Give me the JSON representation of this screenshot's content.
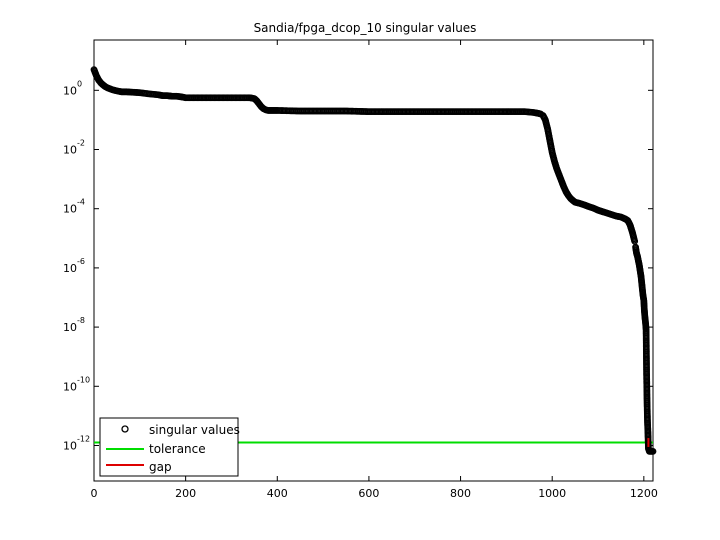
{
  "chart_data": {
    "type": "scatter",
    "title": "Sandia/fpga_dcop_10 singular values",
    "xlabel": "",
    "ylabel": "",
    "xlim": [
      0,
      1220
    ],
    "ylim_log10": [
      -13.2,
      1.7
    ],
    "yscale": "log",
    "x_ticks": [
      0,
      200,
      400,
      600,
      800,
      1000,
      1200
    ],
    "y_tick_base": "10",
    "y_ticks": [
      {
        "value_log10": 0,
        "exp": "0"
      },
      {
        "value_log10": -2,
        "exp": "-2"
      },
      {
        "value_log10": -4,
        "exp": "-4"
      },
      {
        "value_log10": -6,
        "exp": "-6"
      },
      {
        "value_log10": -8,
        "exp": "-8"
      },
      {
        "value_log10": -10,
        "exp": "-10"
      },
      {
        "value_log10": -12,
        "exp": "-12"
      }
    ],
    "grid": false,
    "legend_position": "bottom-left",
    "series": [
      {
        "name": "singular values",
        "marker": "circle",
        "color": "#000000",
        "segments": [
          {
            "x": [
              0,
              5,
              10,
              15,
              20,
              25,
              30,
              40,
              50,
              60,
              70,
              80,
              90,
              100,
              120,
              140,
              150,
              160,
              170,
              180,
              190,
              200,
              220,
              240,
              260,
              280,
              300,
              320,
              340,
              350,
              355,
              360,
              365,
              370,
              375,
              380,
              385,
              390,
              400,
              450,
              500,
              550,
              600,
              650,
              700,
              750,
              800,
              850,
              900,
              940,
              960,
              970,
              975
            ],
            "log10": [
              0.7,
              0.5,
              0.35,
              0.25,
              0.18,
              0.12,
              0.08,
              0.02,
              -0.02,
              -0.05,
              -0.05,
              -0.06,
              -0.07,
              -0.08,
              -0.12,
              -0.15,
              -0.18,
              -0.18,
              -0.2,
              -0.2,
              -0.22,
              -0.25,
              -0.25,
              -0.25,
              -0.25,
              -0.25,
              -0.25,
              -0.25,
              -0.25,
              -0.28,
              -0.35,
              -0.45,
              -0.55,
              -0.62,
              -0.66,
              -0.68,
              -0.68,
              -0.68,
              -0.68,
              -0.7,
              -0.7,
              -0.7,
              -0.72,
              -0.72,
              -0.72,
              -0.72,
              -0.72,
              -0.72,
              -0.72,
              -0.72,
              -0.75,
              -0.78,
              -0.8
            ]
          },
          {
            "x": [
              980,
              985,
              990,
              995,
              1000,
              1005,
              1010,
              1015,
              1020,
              1025,
              1030,
              1035,
              1040,
              1045,
              1050,
              1060,
              1070,
              1080,
              1090,
              1100,
              1110,
              1120,
              1130,
              1140,
              1150,
              1160,
              1165,
              1170,
              1175,
              1180
            ],
            "log10": [
              -0.85,
              -1.0,
              -1.3,
              -1.7,
              -2.1,
              -2.4,
              -2.65,
              -2.85,
              -3.05,
              -3.25,
              -3.42,
              -3.55,
              -3.65,
              -3.72,
              -3.78,
              -3.82,
              -3.87,
              -3.93,
              -3.98,
              -4.05,
              -4.1,
              -4.15,
              -4.2,
              -4.25,
              -4.28,
              -4.35,
              -4.4,
              -4.55,
              -4.8,
              -5.1
            ]
          },
          {
            "x": [
              1182,
              1184,
              1186,
              1188,
              1190,
              1192,
              1194,
              1196,
              1198,
              1200,
              1201,
              1202,
              1203,
              1204,
              1205,
              1206,
              1207,
              1208,
              1209,
              1210,
              1212,
              1214,
              1216,
              1218,
              1220
            ],
            "log10": [
              -5.3,
              -5.5,
              -5.6,
              -5.75,
              -5.9,
              -6.1,
              -6.3,
              -6.6,
              -6.9,
              -7.1,
              -7.4,
              -7.6,
              -7.75,
              -7.9,
              -8.1,
              -9.55,
              -10.5,
              -11.2,
              -11.6,
              -12.1,
              -12.2,
              -12.2,
              -12.2,
              -12.2,
              -12.2
            ]
          }
        ]
      },
      {
        "name": "tolerance",
        "type": "hline",
        "color": "#00dd00",
        "log10": -11.9
      },
      {
        "name": "gap",
        "type": "line",
        "color": "#dd0000",
        "x": [
          1210,
          1210
        ],
        "log10": [
          -11.75,
          -12.05
        ]
      }
    ]
  }
}
